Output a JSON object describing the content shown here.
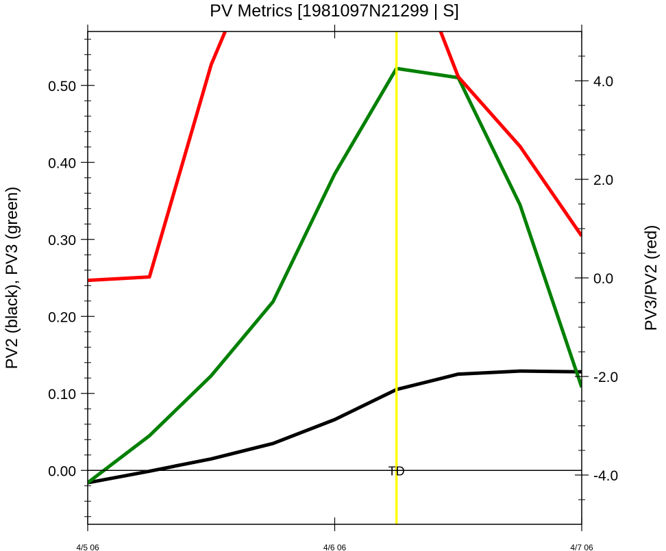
{
  "chart_data": {
    "type": "line",
    "title": "PV Metrics [1981097N21299 | S]",
    "ylabel_left": "PV2 (black), PV3 (green)",
    "ylabel_right": "PV3/PV2 (red)",
    "x_ticks": [
      {
        "x": 0,
        "label": "4/5 06"
      },
      {
        "x": 8,
        "label": "4/6 06"
      },
      {
        "x": 16,
        "label": "4/7 06"
      }
    ],
    "xlim": [
      0,
      16
    ],
    "ylim_left": [
      -0.07,
      0.57
    ],
    "ylim_right": [
      -5.0,
      5.0
    ],
    "yticks_left": [
      {
        "v": 0.0,
        "label": "0.00"
      },
      {
        "v": 0.1,
        "label": "0.10"
      },
      {
        "v": 0.2,
        "label": "0.20"
      },
      {
        "v": 0.3,
        "label": "0.30"
      },
      {
        "v": 0.4,
        "label": "0.40"
      },
      {
        "v": 0.5,
        "label": "0.50"
      }
    ],
    "yticks_right": [
      {
        "v": -4.0,
        "label": "-4.0"
      },
      {
        "v": -2.0,
        "label": "-2.0"
      },
      {
        "v": 0.0,
        "label": "0.0"
      },
      {
        "v": 2.0,
        "label": "2.0"
      },
      {
        "v": 4.0,
        "label": "4.0"
      }
    ],
    "x": [
      0,
      2,
      4,
      6,
      8,
      10,
      12,
      14,
      16
    ],
    "series": [
      {
        "name": "PV2",
        "color": "#000000",
        "axis": "left",
        "values": [
          -0.016,
          -0.001,
          0.015,
          0.035,
          0.066,
          0.105,
          0.125,
          0.129,
          0.128
        ]
      },
      {
        "name": "PV3",
        "color": "#008000",
        "axis": "left",
        "values": [
          -0.016,
          0.045,
          0.123,
          0.219,
          0.385,
          0.522,
          0.51,
          0.345,
          0.108
        ]
      },
      {
        "name": "PV3/PV2",
        "color": "#ff0000",
        "axis": "right",
        "values": [
          -0.05,
          0.02,
          4.33,
          7.3,
          null,
          7.3,
          4.08,
          2.67,
          0.85
        ]
      }
    ],
    "vertical_marker": {
      "x": 10,
      "color": "#ffff00",
      "label": "TD"
    },
    "zero_line": 0.0,
    "grid": false,
    "legend": "none"
  }
}
